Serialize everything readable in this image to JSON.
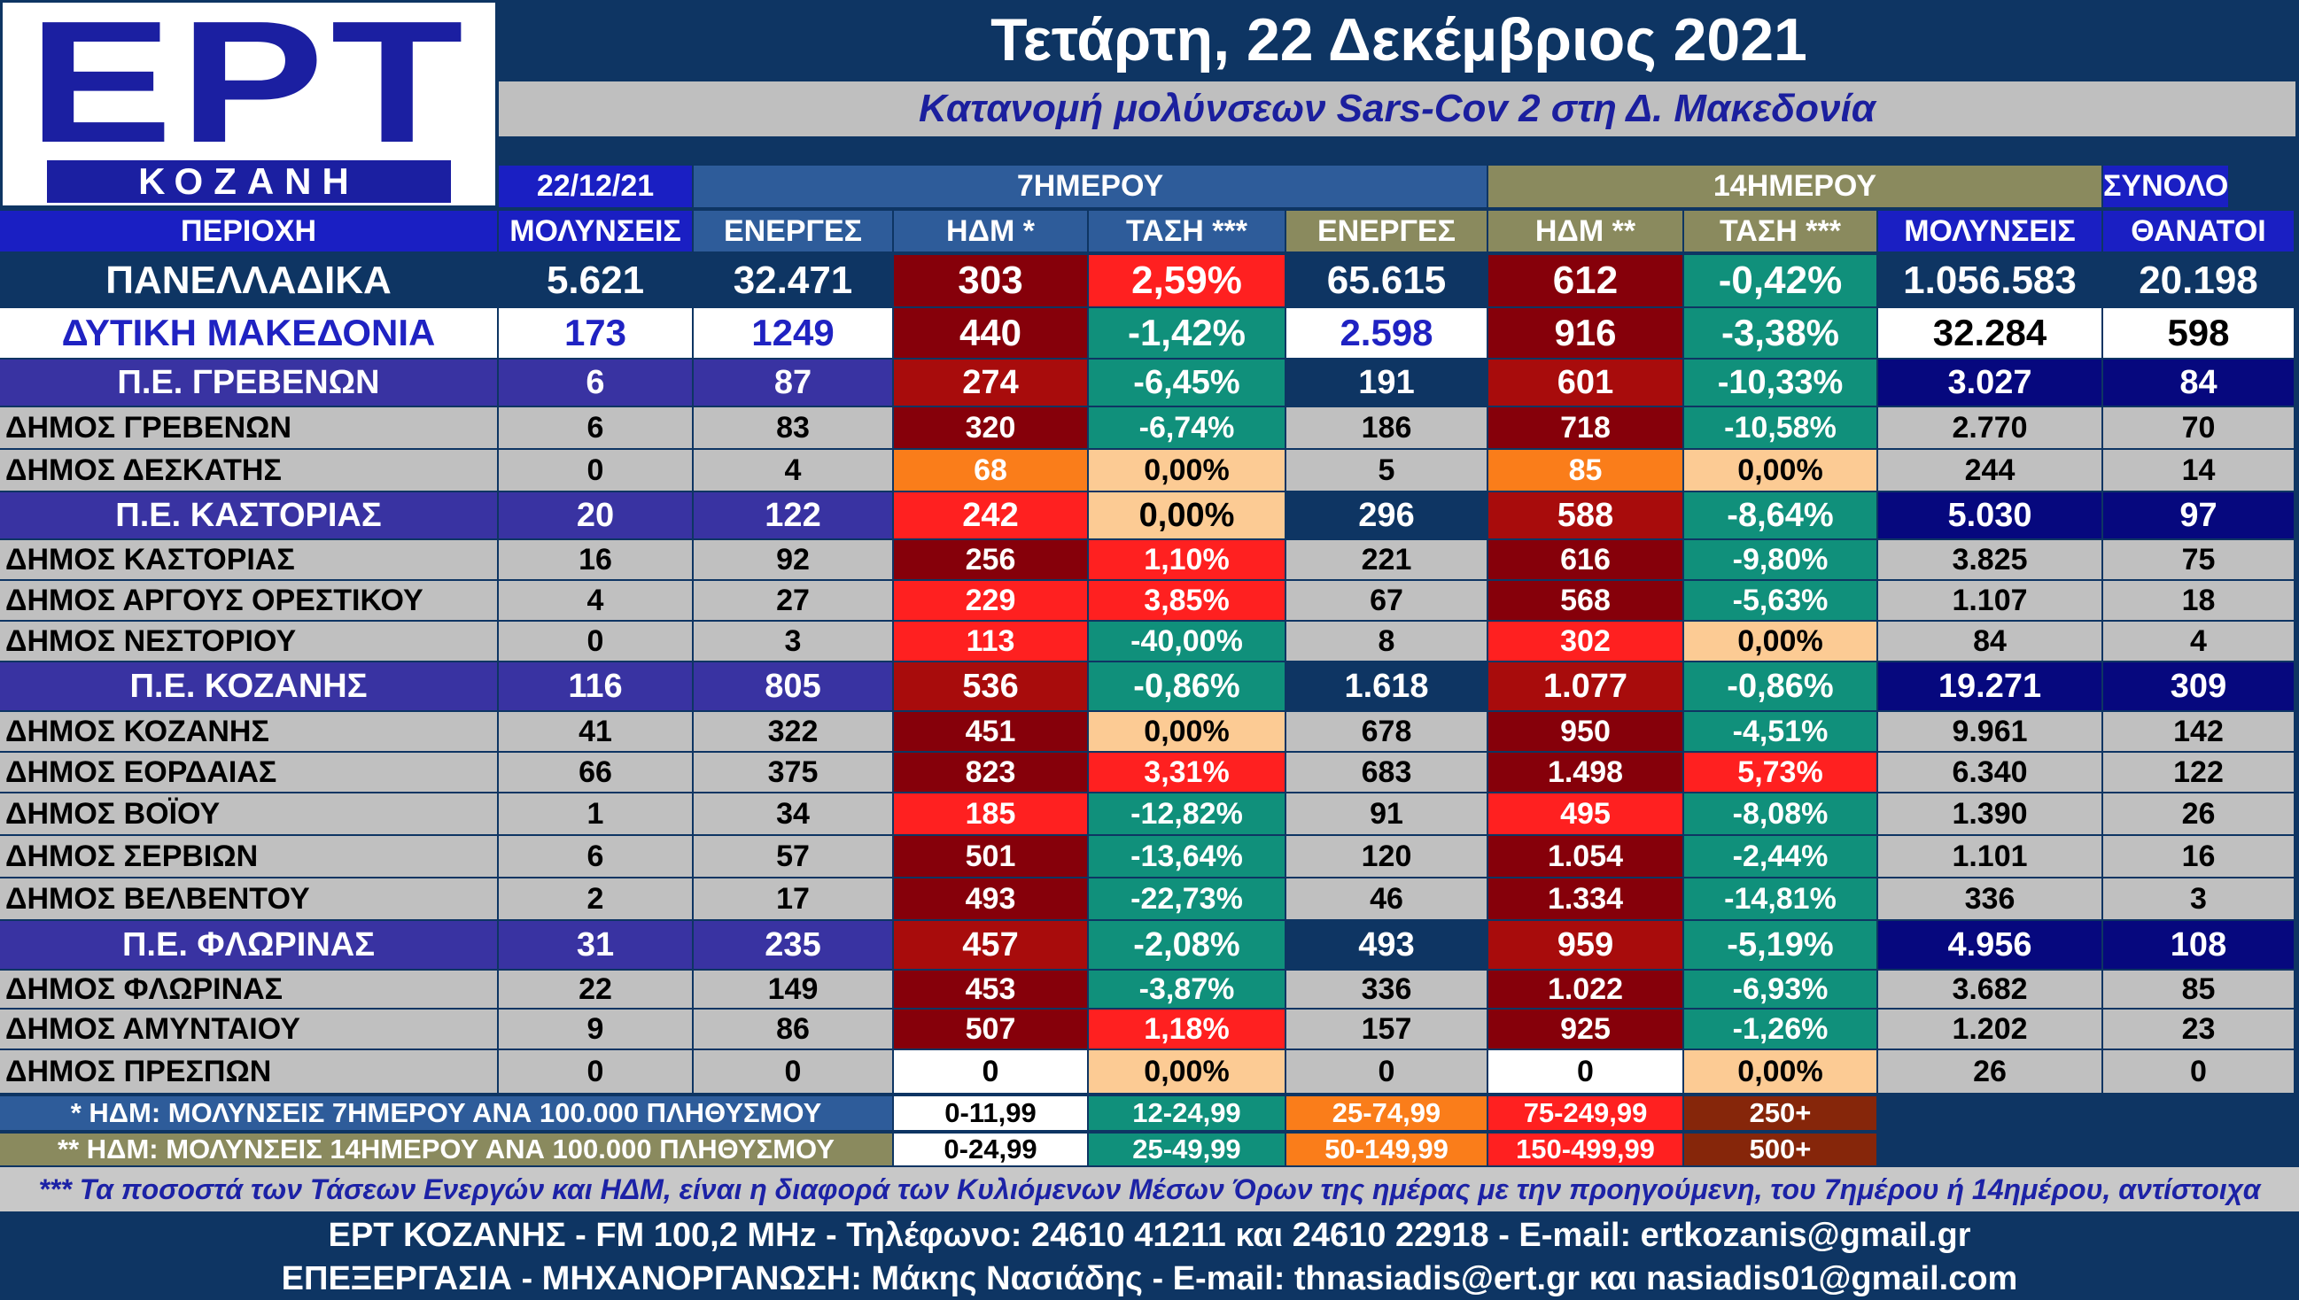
{
  "logo": {
    "main": "ΕΡΤ",
    "sub": "ΚΟΖΑΝΗ"
  },
  "title": "Τετάρτη, 22 Δεκέμβριος 2021",
  "subtitle": "Κατανομή μολύνσεων Sars-Cov 2 στη Δ. Μακεδονία",
  "groups": {
    "date": "22/12/21",
    "week": "7ΗΜΕΡΟΥ",
    "fortnight": "14ΗΜΕΡΟΥ",
    "total": "ΣΥΝΟΛΟ"
  },
  "columns": [
    "ΠΕΡΙΟΧΗ",
    "ΜΟΛΥΝΣΕΙΣ",
    "ΕΝΕΡΓΕΣ",
    "ΗΔΜ *",
    "ΤΑΣΗ ***",
    "ΕΝΕΡΓΕΣ",
    "ΗΔΜ **",
    "ΤΑΣΗ ***",
    "ΜΟΛΥΝΣΕΙΣ",
    "ΘΑΝΑΤΟΙ"
  ],
  "rows": [
    {
      "kind": "national",
      "cells": [
        "ΠΑΝΕΛΛΑΔΙΚΑ",
        "5.621",
        "32.471",
        "303",
        "2,59%",
        "65.615",
        "612",
        "-0,42%",
        "1.056.583",
        "20.198"
      ]
    },
    {
      "kind": "region",
      "cells": [
        "ΔΥΤΙΚΗ ΜΑΚΕΔΟΝΙΑ",
        "173",
        "1249",
        "440",
        "-1,42%",
        "2.598",
        "916",
        "-3,38%",
        "32.284",
        "598"
      ]
    },
    {
      "kind": "pe",
      "cells": [
        "Π.Ε. ΓΡΕΒΕΝΩΝ",
        "6",
        "87",
        "274",
        "-6,45%",
        "191",
        "601",
        "-10,33%",
        "3.027",
        "84"
      ]
    },
    {
      "kind": "dimos",
      "cells": [
        "ΔΗΜΟΣ ΓΡΕΒΕΝΩΝ",
        "6",
        "83",
        "320",
        "-6,74%",
        "186",
        "718",
        "-10,58%",
        "2.770",
        "70"
      ]
    },
    {
      "kind": "dimos",
      "cells": [
        "ΔΗΜΟΣ ΔΕΣΚΑΤΗΣ",
        "0",
        "4",
        "68",
        "0,00%",
        "5",
        "85",
        "0,00%",
        "244",
        "14"
      ]
    },
    {
      "kind": "pe",
      "cells": [
        "Π.Ε. ΚΑΣΤΟΡΙΑΣ",
        "20",
        "122",
        "242",
        "0,00%",
        "296",
        "588",
        "-8,64%",
        "5.030",
        "97"
      ]
    },
    {
      "kind": "dimos",
      "cells": [
        "ΔΗΜΟΣ ΚΑΣΤΟΡΙΑΣ",
        "16",
        "92",
        "256",
        "1,10%",
        "221",
        "616",
        "-9,80%",
        "3.825",
        "75"
      ]
    },
    {
      "kind": "dimos",
      "cells": [
        "ΔΗΜΟΣ ΑΡΓΟΥΣ ΟΡΕΣΤΙΚΟΥ",
        "4",
        "27",
        "229",
        "3,85%",
        "67",
        "568",
        "-5,63%",
        "1.107",
        "18"
      ]
    },
    {
      "kind": "dimos",
      "cells": [
        "ΔΗΜΟΣ ΝΕΣΤΟΡΙΟΥ",
        "0",
        "3",
        "113",
        "-40,00%",
        "8",
        "302",
        "0,00%",
        "84",
        "4"
      ]
    },
    {
      "kind": "pe",
      "cells": [
        "Π.Ε. ΚΟΖΑΝΗΣ",
        "116",
        "805",
        "536",
        "-0,86%",
        "1.618",
        "1.077",
        "-0,86%",
        "19.271",
        "309"
      ]
    },
    {
      "kind": "dimos",
      "cells": [
        "ΔΗΜΟΣ ΚΟΖΑΝΗΣ",
        "41",
        "322",
        "451",
        "0,00%",
        "678",
        "950",
        "-4,51%",
        "9.961",
        "142"
      ]
    },
    {
      "kind": "dimos",
      "cells": [
        "ΔΗΜΟΣ ΕΟΡΔΑΙΑΣ",
        "66",
        "375",
        "823",
        "3,31%",
        "683",
        "1.498",
        "5,73%",
        "6.340",
        "122"
      ]
    },
    {
      "kind": "dimos",
      "cells": [
        "ΔΗΜΟΣ ΒΟΪΟΥ",
        "1",
        "34",
        "185",
        "-12,82%",
        "91",
        "495",
        "-8,08%",
        "1.390",
        "26"
      ]
    },
    {
      "kind": "dimos",
      "cells": [
        "ΔΗΜΟΣ ΣΕΡΒΙΩΝ",
        "6",
        "57",
        "501",
        "-13,64%",
        "120",
        "1.054",
        "-2,44%",
        "1.101",
        "16"
      ]
    },
    {
      "kind": "dimos",
      "cells": [
        "ΔΗΜΟΣ ΒΕΛΒΕΝΤΟΥ",
        "2",
        "17",
        "493",
        "-22,73%",
        "46",
        "1.334",
        "-14,81%",
        "336",
        "3"
      ]
    },
    {
      "kind": "pe",
      "cells": [
        "Π.Ε. ΦΛΩΡΙΝΑΣ",
        "31",
        "235",
        "457",
        "-2,08%",
        "493",
        "959",
        "-5,19%",
        "4.956",
        "108"
      ]
    },
    {
      "kind": "dimos",
      "cells": [
        "ΔΗΜΟΣ ΦΛΩΡΙΝΑΣ",
        "22",
        "149",
        "453",
        "-3,87%",
        "336",
        "1.022",
        "-6,93%",
        "3.682",
        "85"
      ]
    },
    {
      "kind": "dimos",
      "cells": [
        "ΔΗΜΟΣ ΑΜΥΝΤΑΙΟΥ",
        "9",
        "86",
        "507",
        "1,18%",
        "157",
        "925",
        "-1,26%",
        "1.202",
        "23"
      ]
    },
    {
      "kind": "dimos",
      "cells": [
        "ΔΗΜΟΣ ΠΡΕΣΠΩΝ",
        "0",
        "0",
        "0",
        "0,00%",
        "0",
        "0",
        "0,00%",
        "26",
        "0"
      ]
    }
  ],
  "cell_colors": {
    "white": "#ffffff",
    "orange": "#fa7d1a",
    "red": "#ff2020",
    "darkred": "#a80c0c",
    "darkest": "#86000a",
    "green": "#10907b",
    "peach": "#fccb94",
    "navy": "#0e3563",
    "pe_blue": "#3933a2",
    "total_blue": "#06087e",
    "grey": "#c0c0c0",
    "region_blue": "#1f22c2"
  },
  "legend": {
    "row1_label": "* ΗΔΜ: ΜΟΛΥΝΣΕΙΣ 7ΗΜΕΡΟΥ ΑΝΑ 100.000 ΠΛΗΘΥΣΜΟΥ",
    "row1_values": [
      "0-11,99",
      "12-24,99",
      "25-74,99",
      "75-249,99",
      "250+"
    ],
    "row2_label": "** ΗΔΜ: ΜΟΛΥΝΣΕΙΣ 14ΗΜΕΡΟΥ ΑΝΑ 100.000 ΠΛΗΘΥΣΜΟΥ",
    "row2_values": [
      "0-24,99",
      "25-49,99",
      "50-149,99",
      "150-499,99",
      "500+"
    ]
  },
  "note": "*** Τα ποσοστά των Τάσεων Ενεργών και ΗΔΜ, είναι η διαφορά των Κυλιόμενων Μέσων Όρων της ημέρας με την προηγούμενη, του 7ημέρου ή 14ημέρου, αντίστοιχα",
  "footer": {
    "line1": "ΕΡΤ ΚΟΖΑΝΗΣ - FM 100,2 MHz - Τηλέφωνο:  24610 41211 και 24610 22918 - E-mail: ertkozanis@gmail.gr",
    "line2": "ΕΠΕΞΕΡΓΑΣΙΑ  -  ΜΗΧΑΝΟΡΓΑΝΩΣΗ: Μάκης Νασιάδης  -   E-mail: thnasiadis@ert.gr και nasiadis01@gmail.com"
  }
}
